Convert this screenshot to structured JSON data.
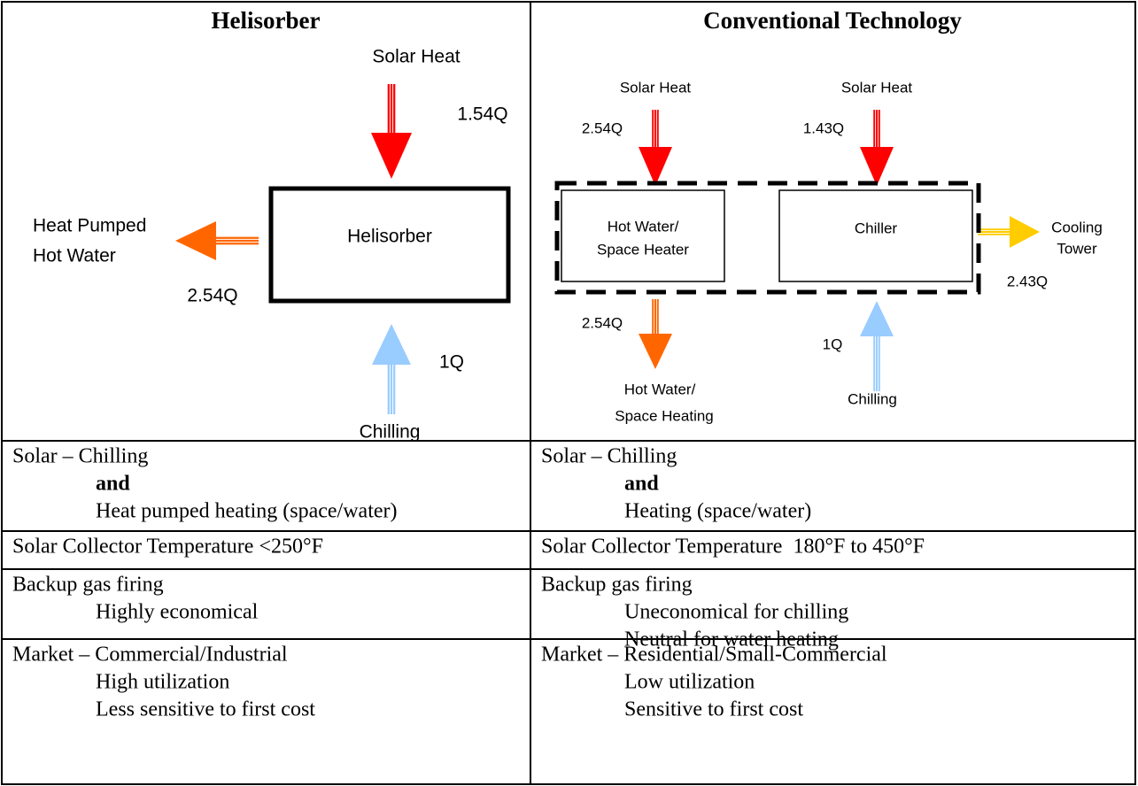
{
  "left": {
    "title": "Helisorber",
    "solar": "Solar Heat",
    "solar_q": "1.54Q",
    "box": "Helisorber",
    "out": [
      "Heat Pumped",
      "Hot Water"
    ],
    "out_q": "2.54Q",
    "chill_q": "1Q",
    "chill": "Chilling"
  },
  "right": {
    "title": "Conventional Technology",
    "solar1": "Solar Heat",
    "solar1_q": "2.54Q",
    "solar2": "Solar Heat",
    "solar2_q": "1.43Q",
    "box1": [
      "Hot Water/",
      "Space Heater"
    ],
    "box2": "Chiller",
    "tower": [
      "Cooling",
      "Tower"
    ],
    "tower_q": "2.43Q",
    "heat_q": "2.54Q",
    "heat": [
      "Hot Water/",
      "Space Heating"
    ],
    "chill_q": "1Q",
    "chill": "Chilling"
  },
  "rows": [
    [
      [
        "Solar – Chilling",
        "and",
        "Heat pumped heating (space/water)"
      ],
      [
        "Solar – Chilling",
        "and",
        "Heating (space/water)"
      ]
    ],
    [
      [
        "Solar Collector Temperature <250°F"
      ],
      [
        "Solar Collector Temperature  180°F to 450°F"
      ]
    ],
    [
      [
        "Backup gas firing",
        "Highly economical"
      ],
      [
        "Backup gas firing",
        "Uneconomical for chilling",
        "Neutral for water heating"
      ]
    ],
    [
      [
        "Market – Commercial/Industrial",
        "High utilization",
        "Less sensitive to first cost"
      ],
      [
        "Market – Residential/Small-Commercial",
        "Low utilization",
        "Sensitive to first cost"
      ]
    ]
  ]
}
